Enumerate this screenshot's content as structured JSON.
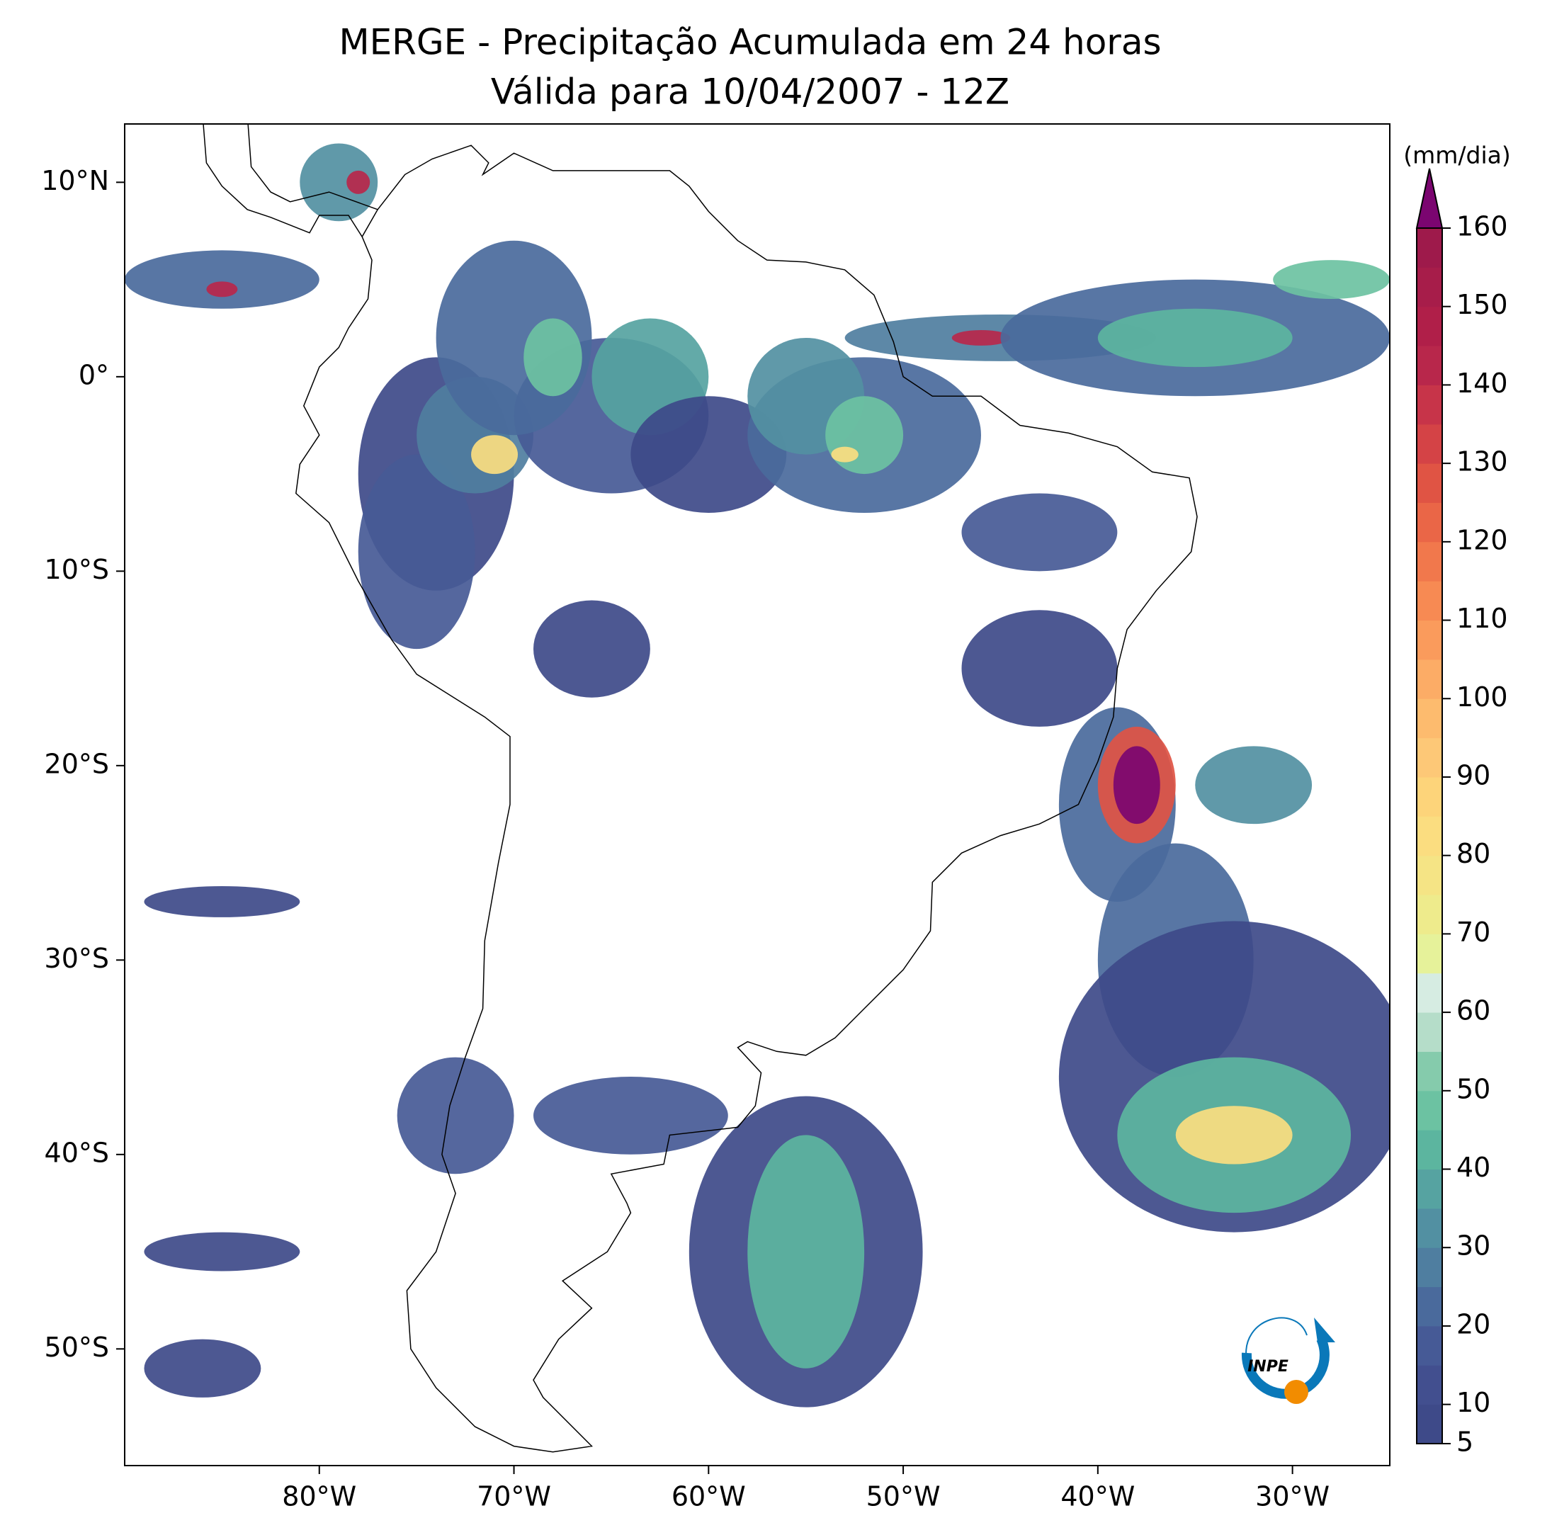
{
  "chart_data": {
    "type": "map",
    "title": "MERGE - Precipitação Acumulada em 24 horas",
    "subtitle": "Válida para 10/04/2007 - 12Z",
    "xlim": [
      -90,
      -25
    ],
    "ylim": [
      -56,
      13
    ],
    "xticks": [
      {
        "value": -80,
        "label": "80°W"
      },
      {
        "value": -70,
        "label": "70°W"
      },
      {
        "value": -60,
        "label": "60°W"
      },
      {
        "value": -50,
        "label": "50°W"
      },
      {
        "value": -40,
        "label": "40°W"
      },
      {
        "value": -30,
        "label": "30°W"
      }
    ],
    "yticks": [
      {
        "value": 10,
        "label": "10°N"
      },
      {
        "value": 0,
        "label": "0°"
      },
      {
        "value": -10,
        "label": "10°S"
      },
      {
        "value": -20,
        "label": "20°S"
      },
      {
        "value": -30,
        "label": "30°S"
      },
      {
        "value": -40,
        "label": "40°S"
      },
      {
        "value": -50,
        "label": "50°S"
      }
    ],
    "colorbar": {
      "label": "(mm/dia)",
      "lim": [
        5,
        160
      ],
      "ticks": [
        5,
        10,
        20,
        30,
        40,
        50,
        60,
        70,
        80,
        90,
        100,
        110,
        120,
        130,
        140,
        150,
        160
      ],
      "colors": [
        "#3e4a89",
        "#424f8f",
        "#465a96",
        "#4a6a9c",
        "#4f7ea0",
        "#5290a2",
        "#56a3a1",
        "#5cb59f",
        "#6cc2a2",
        "#85cbac",
        "#b5ddc9",
        "#d6ece2",
        "#e6f29a",
        "#eeeb8c",
        "#f5e485",
        "#fbdd80",
        "#fdd47a",
        "#fdc877",
        "#fdbb6e",
        "#fcac66",
        "#fa9b5c",
        "#f78a53",
        "#f1784c",
        "#ea6647",
        "#e05444",
        "#d44346",
        "#c73449",
        "#b8274b",
        "#b01f49",
        "#a71d4a",
        "#9e1a4b"
      ],
      "extend_color": "#7b0570"
    },
    "logo": "INPE"
  }
}
